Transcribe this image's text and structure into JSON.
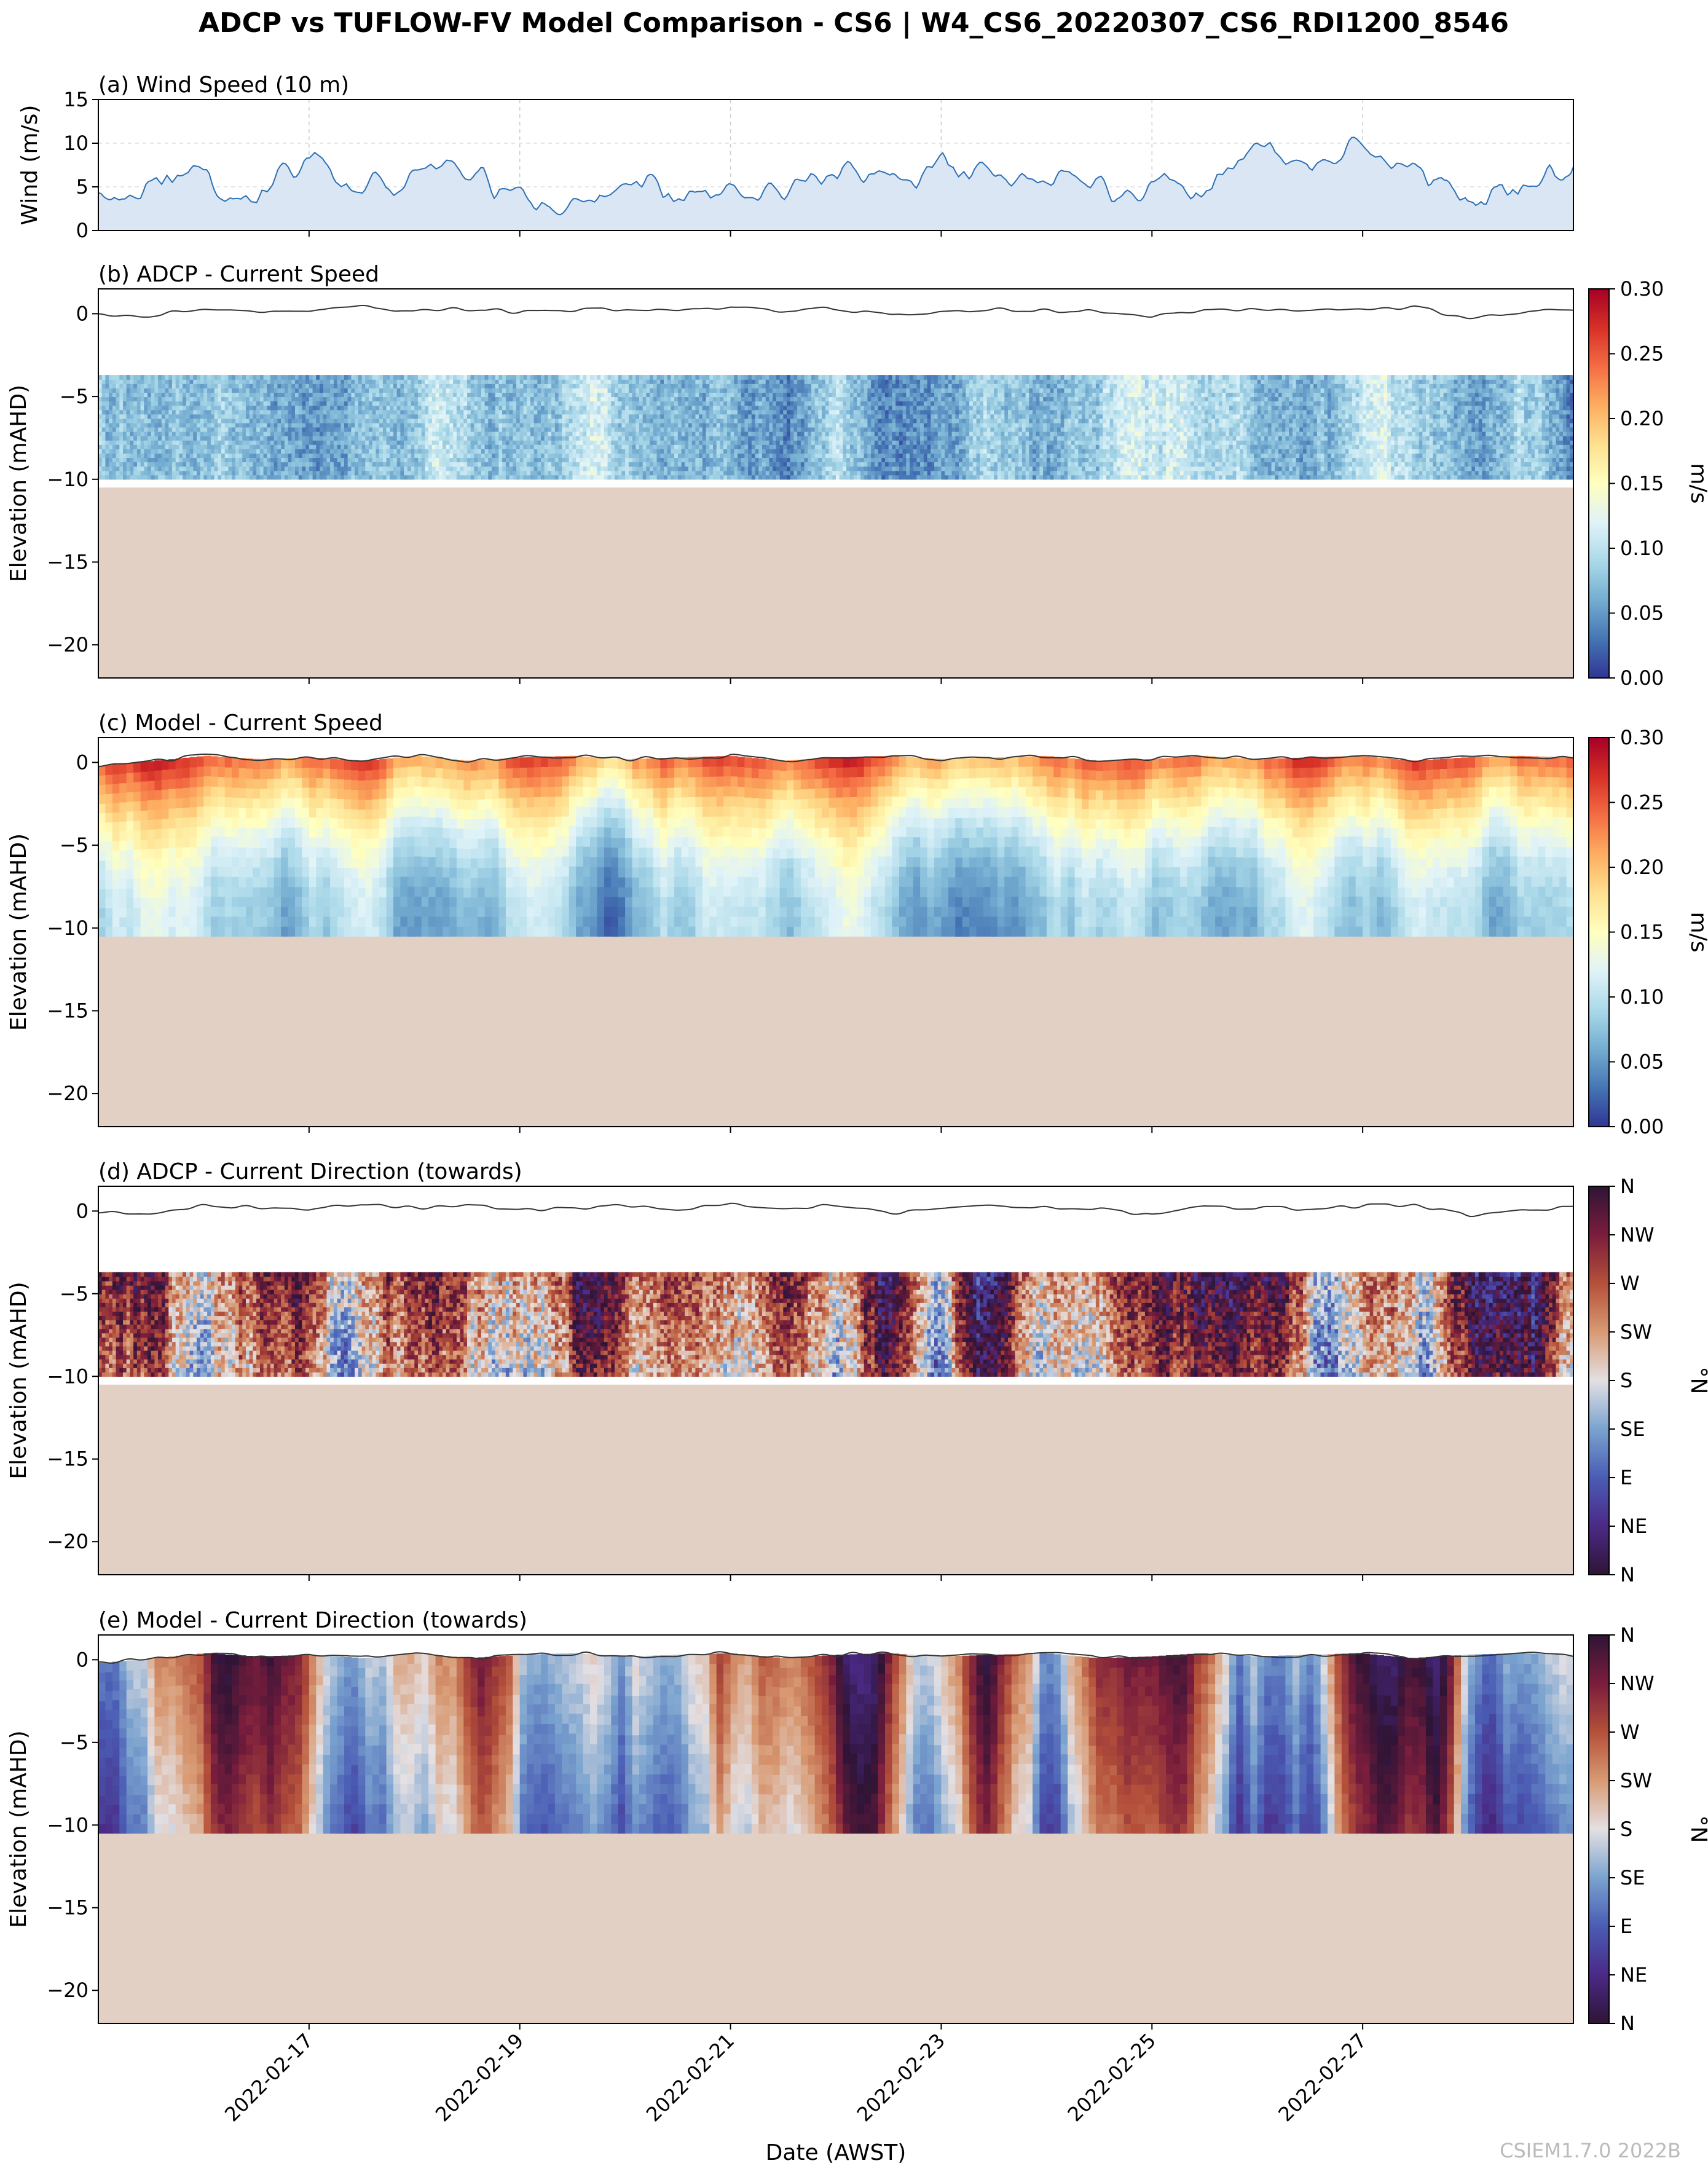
{
  "figure": {
    "title": "ADCP vs TUFLOW-FV Model Comparison - CS6 | W4_CS6_20220307_CS6_RDI1200_8546",
    "xlabel": "Date (AWST)",
    "watermark": "CSIEM1.7.0 2022B",
    "x_ticks": [
      "2022-02-17",
      "2022-02-19",
      "2022-02-21",
      "2022-02-23",
      "2022-02-25",
      "2022-02-27"
    ],
    "colors": {
      "wind_line": "#2b6fb5",
      "wind_fill": "#dbe6f4",
      "seabed": "#e3d0c4",
      "water_surface_line": "#333333"
    }
  },
  "chart_data": [
    {
      "id": "a",
      "type": "area",
      "title": "(a) Wind Speed (10 m)",
      "ylabel": "Wind (m/s)",
      "ylim": [
        0,
        15
      ],
      "yticks": [
        "0",
        "5",
        "10",
        "15"
      ],
      "x_range": [
        "2022-02-15",
        "2022-02-29"
      ],
      "grid": true,
      "x": [
        "2022-02-15 00:00",
        "2022-02-15 12:00",
        "2022-02-16 00:00",
        "2022-02-16 12:00",
        "2022-02-17 00:00",
        "2022-02-17 12:00",
        "2022-02-18 00:00",
        "2022-02-18 12:00",
        "2022-02-19 00:00",
        "2022-02-19 12:00",
        "2022-02-20 00:00",
        "2022-02-20 12:00",
        "2022-02-21 00:00",
        "2022-02-21 12:00",
        "2022-02-22 00:00",
        "2022-02-22 12:00",
        "2022-02-23 00:00",
        "2022-02-23 12:00",
        "2022-02-24 00:00",
        "2022-02-24 12:00",
        "2022-02-25 00:00",
        "2022-02-25 12:00",
        "2022-02-26 00:00",
        "2022-02-26 12:00",
        "2022-02-27 00:00",
        "2022-02-27 12:00",
        "2022-02-28 00:00",
        "2022-02-28 12:00",
        "2022-02-29 00:00"
      ],
      "y": [
        4,
        4.5,
        6,
        4,
        7.5,
        5,
        6,
        7,
        4,
        3,
        7,
        4,
        5,
        4,
        7,
        5.5,
        7.5,
        6.5,
        6.5,
        5,
        4.5,
        5,
        9,
        6,
        10,
        7,
        3,
        6,
        6
      ]
    },
    {
      "id": "b",
      "type": "heatmap",
      "title": "(b) ADCP - Current Speed",
      "ylabel": "Elevation (mAHD)",
      "ylim": [
        -22,
        1.5
      ],
      "yticks": [
        "0",
        "−5",
        "−10",
        "−15",
        "−20"
      ],
      "bin_range_mAHD": [
        -10,
        -3.7
      ],
      "seabed_mAHD": -10.5,
      "colorbar": {
        "label": "m/s",
        "ticks": [
          "0.00",
          "0.05",
          "0.10",
          "0.15",
          "0.20",
          "0.25",
          "0.30"
        ],
        "colormap": [
          "#313695",
          "#4575b4",
          "#74add1",
          "#abd9e9",
          "#e0f3f8",
          "#ffffbf",
          "#fee090",
          "#fdae61",
          "#f46d43",
          "#d73027",
          "#a50026"
        ]
      },
      "surface_elevation_mAHD": [
        0,
        -0.1,
        0.3,
        0.2,
        0.1,
        0.4,
        0.2,
        0.3,
        0.1,
        0.2,
        0.3,
        0.1,
        0.4,
        0.2,
        0.3,
        -0.1,
        0.1,
        0.3,
        0.2,
        0.1,
        -0.2,
        0.3,
        0.2,
        0.1,
        0.3,
        0.4,
        -0.3,
        0.1,
        0.2
      ]
    },
    {
      "id": "c",
      "type": "heatmap",
      "title": "(c) Model - Current Speed",
      "ylabel": "Elevation (mAHD)",
      "ylim": [
        -22,
        1.5
      ],
      "yticks": [
        "0",
        "−5",
        "−10",
        "−15",
        "−20"
      ],
      "bin_range_mAHD": [
        -10.5,
        0.3
      ],
      "seabed_mAHD": -10.5,
      "colorbar": {
        "label": "m/s",
        "ticks": [
          "0.00",
          "0.05",
          "0.10",
          "0.15",
          "0.20",
          "0.25",
          "0.30"
        ],
        "colormap": [
          "#313695",
          "#4575b4",
          "#74add1",
          "#abd9e9",
          "#e0f3f8",
          "#ffffbf",
          "#fee090",
          "#fdae61",
          "#f46d43",
          "#d73027",
          "#a50026"
        ]
      },
      "surface_elevation_mAHD": [
        -0.2,
        0.1,
        0.4,
        0.2,
        0.3,
        0.1,
        0.4,
        0.1,
        0.3,
        0.4,
        0.2,
        0.3,
        0.4,
        0.1,
        0.3,
        0.4,
        0.2,
        0.3,
        0.4,
        0.1,
        0.2,
        0.4,
        0.2,
        0.3,
        0.4,
        0.1,
        0.3,
        0.4,
        0.3
      ]
    },
    {
      "id": "d",
      "type": "heatmap",
      "title": "(d) ADCP - Current Direction (towards)",
      "ylabel": "Elevation (mAHD)",
      "ylim": [
        -22,
        1.5
      ],
      "yticks": [
        "0",
        "−5",
        "−10",
        "−15",
        "−20"
      ],
      "bin_range_mAHD": [
        -10,
        -3.7
      ],
      "seabed_mAHD": -10.5,
      "colorbar": {
        "label": "°N",
        "ticks": [
          "N",
          "NE",
          "E",
          "SE",
          "S",
          "SW",
          "W",
          "NW",
          "N"
        ],
        "colormap": [
          "#2f1436",
          "#4a2a86",
          "#4a5cb4",
          "#7aa3cf",
          "#e4e0e3",
          "#d89a73",
          "#b4503a",
          "#7a1d3c",
          "#2f1436"
        ]
      },
      "surface_elevation_mAHD": [
        0,
        -0.1,
        0.3,
        0.2,
        0.1,
        0.4,
        0.2,
        0.3,
        0.1,
        0.2,
        0.3,
        0.1,
        0.4,
        0.2,
        0.3,
        -0.1,
        0.1,
        0.3,
        0.2,
        0.1,
        -0.2,
        0.3,
        0.2,
        0.1,
        0.3,
        0.4,
        -0.3,
        0.1,
        0.2
      ]
    },
    {
      "id": "e",
      "type": "heatmap",
      "title": "(e) Model - Current Direction (towards)",
      "ylabel": "Elevation (mAHD)",
      "ylim": [
        -22,
        1.5
      ],
      "yticks": [
        "0",
        "−5",
        "−10",
        "−15",
        "−20"
      ],
      "bin_range_mAHD": [
        -10.5,
        0.3
      ],
      "seabed_mAHD": -10.5,
      "colorbar": {
        "label": "°N",
        "ticks": [
          "N",
          "NE",
          "E",
          "SE",
          "S",
          "SW",
          "W",
          "NW",
          "N"
        ],
        "colormap": [
          "#2f1436",
          "#4a2a86",
          "#4a5cb4",
          "#7aa3cf",
          "#e4e0e3",
          "#d89a73",
          "#b4503a",
          "#7a1d3c",
          "#2f1436"
        ]
      },
      "surface_elevation_mAHD": [
        -0.2,
        0.1,
        0.4,
        0.2,
        0.3,
        0.1,
        0.4,
        0.1,
        0.3,
        0.4,
        0.2,
        0.3,
        0.4,
        0.1,
        0.3,
        0.4,
        0.2,
        0.3,
        0.4,
        0.1,
        0.2,
        0.4,
        0.2,
        0.3,
        0.4,
        0.1,
        0.3,
        0.4,
        0.3
      ]
    }
  ]
}
